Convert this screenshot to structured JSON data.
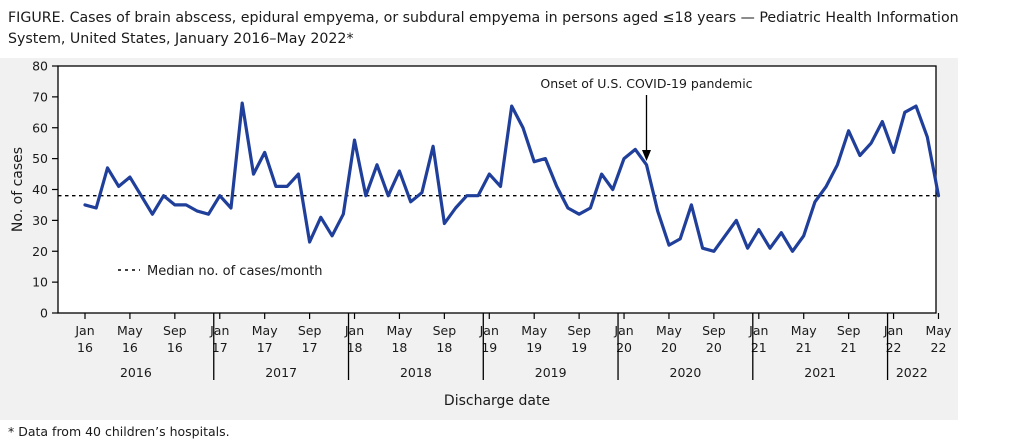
{
  "figure": {
    "title": "FIGURE. Cases of brain abscess, epidural empyema, or subdural empyema in persons aged ≤18 years — Pediatric Health Information System, United States, January 2016–May 2022*",
    "footnote": "* Data from 40 children’s hospitals."
  },
  "colors": {
    "line": "#1f3f9a",
    "axis": "#000000",
    "panel_bg": "#f1f1f1"
  },
  "chart_data": {
    "type": "line",
    "title": "Cases of brain abscess, epidural empyema, or subdural empyema in persons aged ≤18 years",
    "xlabel": "Discharge date",
    "ylabel": "No. of cases",
    "ylim": [
      0,
      80
    ],
    "yticks": [
      0,
      10,
      20,
      30,
      40,
      50,
      60,
      70,
      80
    ],
    "grid": false,
    "x": [
      "2016-01",
      "2016-02",
      "2016-03",
      "2016-04",
      "2016-05",
      "2016-06",
      "2016-07",
      "2016-08",
      "2016-09",
      "2016-10",
      "2016-11",
      "2016-12",
      "2017-01",
      "2017-02",
      "2017-03",
      "2017-04",
      "2017-05",
      "2017-06",
      "2017-07",
      "2017-08",
      "2017-09",
      "2017-10",
      "2017-11",
      "2017-12",
      "2018-01",
      "2018-02",
      "2018-03",
      "2018-04",
      "2018-05",
      "2018-06",
      "2018-07",
      "2018-08",
      "2018-09",
      "2018-10",
      "2018-11",
      "2018-12",
      "2019-01",
      "2019-02",
      "2019-03",
      "2019-04",
      "2019-05",
      "2019-06",
      "2019-07",
      "2019-08",
      "2019-09",
      "2019-10",
      "2019-11",
      "2019-12",
      "2020-01",
      "2020-02",
      "2020-03",
      "2020-04",
      "2020-05",
      "2020-06",
      "2020-07",
      "2020-08",
      "2020-09",
      "2020-10",
      "2020-11",
      "2020-12",
      "2021-01",
      "2021-02",
      "2021-03",
      "2021-04",
      "2021-05",
      "2021-06",
      "2021-07",
      "2021-08",
      "2021-09",
      "2021-10",
      "2021-11",
      "2021-12",
      "2022-01",
      "2022-02",
      "2022-03",
      "2022-04",
      "2022-05"
    ],
    "series": [
      {
        "name": "Cases",
        "values": [
          35,
          34,
          47,
          41,
          44,
          38,
          32,
          38,
          35,
          35,
          33,
          32,
          38,
          34,
          68,
          45,
          52,
          41,
          41,
          45,
          23,
          31,
          25,
          32,
          56,
          38,
          48,
          38,
          46,
          36,
          39,
          54,
          29,
          34,
          38,
          38,
          45,
          41,
          67,
          60,
          49,
          50,
          41,
          34,
          32,
          34,
          45,
          40,
          50,
          53,
          48,
          33,
          22,
          24,
          35,
          21,
          20,
          25,
          30,
          21,
          27,
          21,
          26,
          20,
          25,
          36,
          41,
          48,
          59,
          51,
          55,
          62,
          52,
          65,
          67,
          57,
          38
        ]
      }
    ],
    "median": {
      "value": 38,
      "label": "Median no. of cases/month"
    },
    "annotation": {
      "text": "Onset of U.S. COVID-19 pandemic",
      "x": "2020-03"
    },
    "xticks": [
      {
        "month": "Jan",
        "yy": "16",
        "x": "2016-01"
      },
      {
        "month": "May",
        "yy": "16",
        "x": "2016-05"
      },
      {
        "month": "Sep",
        "yy": "16",
        "x": "2016-09"
      },
      {
        "month": "Jan",
        "yy": "17",
        "x": "2017-01"
      },
      {
        "month": "May",
        "yy": "17",
        "x": "2017-05"
      },
      {
        "month": "Sep",
        "yy": "17",
        "x": "2017-09"
      },
      {
        "month": "Jan",
        "yy": "18",
        "x": "2018-01"
      },
      {
        "month": "May",
        "yy": "18",
        "x": "2018-05"
      },
      {
        "month": "Sep",
        "yy": "18",
        "x": "2018-09"
      },
      {
        "month": "Jan",
        "yy": "19",
        "x": "2019-01"
      },
      {
        "month": "May",
        "yy": "19",
        "x": "2019-05"
      },
      {
        "month": "Sep",
        "yy": "19",
        "x": "2019-09"
      },
      {
        "month": "Jan",
        "yy": "20",
        "x": "2020-01"
      },
      {
        "month": "May",
        "yy": "20",
        "x": "2020-05"
      },
      {
        "month": "Sep",
        "yy": "20",
        "x": "2020-09"
      },
      {
        "month": "Jan",
        "yy": "21",
        "x": "2021-01"
      },
      {
        "month": "May",
        "yy": "21",
        "x": "2021-05"
      },
      {
        "month": "Sep",
        "yy": "21",
        "x": "2021-09"
      },
      {
        "month": "Jan",
        "yy": "22",
        "x": "2022-01"
      },
      {
        "month": "May",
        "yy": "22",
        "x": "2022-05"
      }
    ],
    "years": [
      "2016",
      "2017",
      "2018",
      "2019",
      "2020",
      "2021",
      "2022"
    ]
  }
}
